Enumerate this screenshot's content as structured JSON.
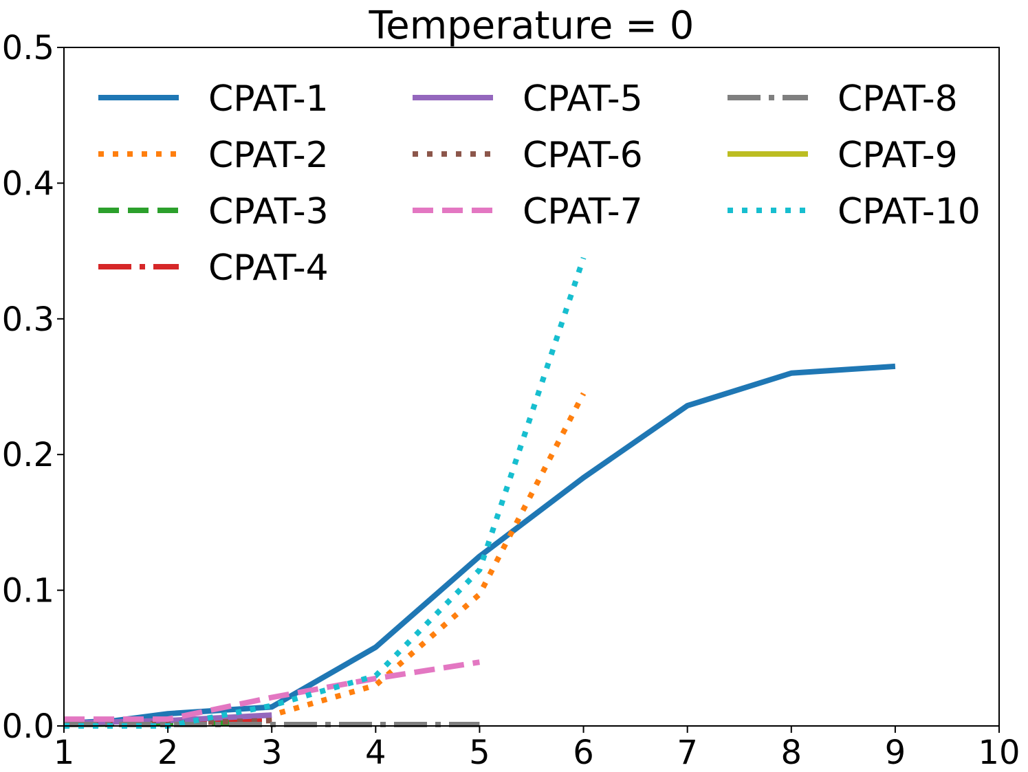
{
  "chart_data": {
    "type": "line",
    "title": "Temperature = 0",
    "xlabel": "",
    "ylabel": "",
    "xlim": [
      1,
      10
    ],
    "ylim": [
      0,
      0.5
    ],
    "x_ticks": [
      "1",
      "2",
      "3",
      "4",
      "5",
      "6",
      "7",
      "8",
      "9",
      "10"
    ],
    "y_ticks": [
      "0.0",
      "0.1",
      "0.2",
      "0.3",
      "0.4",
      "0.5"
    ],
    "grid": false,
    "legend_position": "top",
    "legend_columns": 3,
    "series": [
      {
        "name": "CPAT-1",
        "color": "#1f77b4",
        "style": "solid",
        "x": [
          1,
          1.5,
          2,
          3,
          4,
          5,
          6,
          7,
          8,
          9
        ],
        "y": [
          0.002,
          0.004,
          0.009,
          0.014,
          0.058,
          0.125,
          0.183,
          0.236,
          0.26,
          0.265
        ]
      },
      {
        "name": "CPAT-2",
        "color": "#ff7f0e",
        "style": "dotted",
        "x": [
          1,
          2,
          3,
          4,
          5,
          6
        ],
        "y": [
          0.0,
          0.002,
          0.008,
          0.03,
          0.097,
          0.245
        ]
      },
      {
        "name": "CPAT-3",
        "color": "#2ca02c",
        "style": "dashed",
        "x": [
          1,
          2,
          3
        ],
        "y": [
          0.001,
          0.002,
          0.003
        ]
      },
      {
        "name": "CPAT-4",
        "color": "#d62728",
        "style": "dashdot",
        "x": [
          1,
          2,
          3
        ],
        "y": [
          0.001,
          0.003,
          0.005
        ]
      },
      {
        "name": "CPAT-5",
        "color": "#9467bd",
        "style": "solid",
        "x": [
          1,
          2,
          3
        ],
        "y": [
          0.002,
          0.004,
          0.008
        ]
      },
      {
        "name": "CPAT-6",
        "color": "#8c564b",
        "style": "dotted",
        "x": [
          1,
          2,
          3
        ],
        "y": [
          0.0,
          0.002,
          0.004
        ]
      },
      {
        "name": "CPAT-7",
        "color": "#e377c2",
        "style": "dashed",
        "x": [
          1,
          2,
          3,
          4,
          5
        ],
        "y": [
          0.005,
          0.005,
          0.021,
          0.035,
          0.047
        ]
      },
      {
        "name": "CPAT-8",
        "color": "#7f7f7f",
        "style": "dashdot",
        "x": [
          1,
          2,
          3,
          4,
          5
        ],
        "y": [
          0.001,
          0.001,
          0.001,
          0.001,
          0.001
        ]
      },
      {
        "name": "CPAT-9",
        "color": "#bcbd22",
        "style": "solid",
        "x": [],
        "y": []
      },
      {
        "name": "CPAT-10",
        "color": "#17becf",
        "style": "dotted",
        "x": [
          1,
          2,
          3,
          4,
          5,
          6
        ],
        "y": [
          0.0,
          0.0,
          0.015,
          0.037,
          0.115,
          0.345
        ]
      }
    ]
  }
}
